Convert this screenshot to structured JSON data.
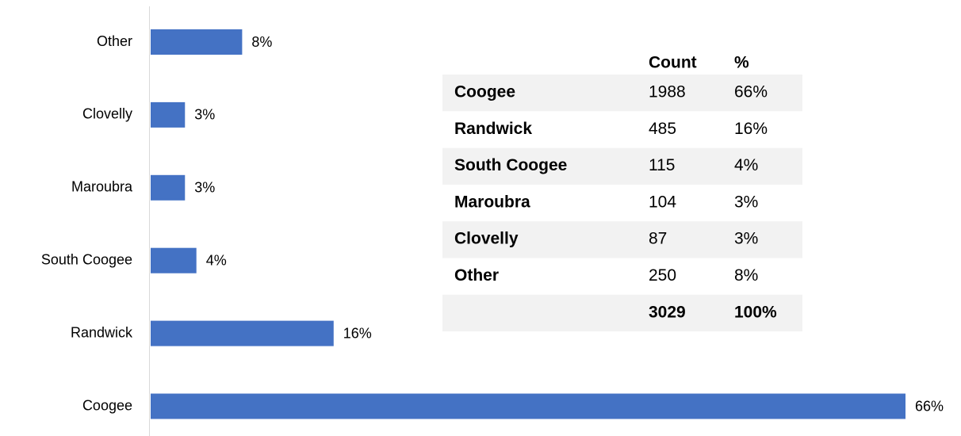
{
  "chart_data": {
    "type": "bar",
    "orientation": "horizontal",
    "categories": [
      "Other",
      "Clovelly",
      "Maroubra",
      "South Coogee",
      "Randwick",
      "Coogee"
    ],
    "values": [
      8,
      3,
      3,
      4,
      16,
      66
    ],
    "value_labels": [
      "8%",
      "3%",
      "3%",
      "4%",
      "16%",
      "66%"
    ],
    "color": "#4472c4"
  },
  "table": {
    "headers": [
      "Count",
      "%"
    ],
    "rows": [
      [
        "Coogee",
        1988,
        "66%"
      ],
      [
        "Randwick",
        485,
        "16%"
      ],
      [
        "South Coogee",
        115,
        "4%"
      ],
      [
        "Maroubra",
        104,
        "3%"
      ],
      [
        "Clovelly",
        87,
        "3%"
      ],
      [
        "Other",
        250,
        "8%"
      ]
    ],
    "total": [
      3029,
      "100%"
    ]
  }
}
